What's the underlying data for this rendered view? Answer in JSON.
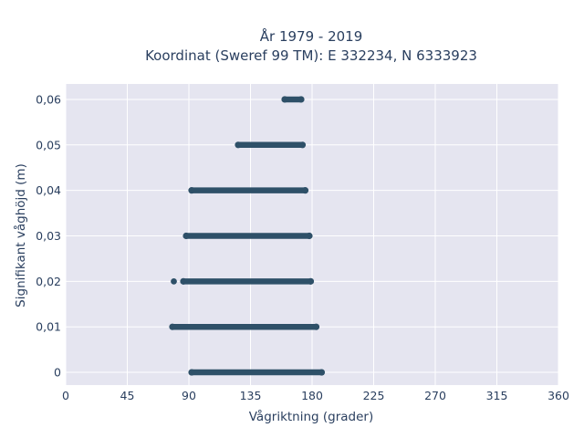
{
  "chart_data": {
    "type": "scatter",
    "title_line1": "År 1979 - 2019",
    "title_line2": "Koordinat (Sweref 99 TM): E 332234, N 6333923",
    "xlabel": "Vågriktning (grader)",
    "ylabel": "Signifikant våghöjd (m)",
    "xlim": [
      0,
      360
    ],
    "ylim": [
      -0.0028,
      0.0634
    ],
    "xticks": [
      0,
      45,
      90,
      135,
      180,
      225,
      270,
      315,
      360
    ],
    "xtick_labels": [
      "0",
      "45",
      "90",
      "135",
      "180",
      "225",
      "270",
      "315",
      "360"
    ],
    "yticks": [
      0,
      0.01,
      0.02,
      0.03,
      0.04,
      0.05,
      0.06
    ],
    "ytick_labels": [
      "0",
      "0,01",
      "0,02",
      "0,03",
      "0,04",
      "0,05",
      "0,06"
    ],
    "grid": true,
    "marker_color": "#2e5068",
    "plot_background": "#e5e5f0",
    "bands": [
      {
        "y": 0.06,
        "x_min": 160,
        "x_max": 172
      },
      {
        "y": 0.05,
        "x_min": 126,
        "x_max": 173
      },
      {
        "y": 0.04,
        "x_min": 92,
        "x_max": 175
      },
      {
        "y": 0.03,
        "x_min": 88,
        "x_max": 178
      },
      {
        "y": 0.02,
        "x_min": 86,
        "x_max": 179
      },
      {
        "y": 0.01,
        "x_min": 78,
        "x_max": 183
      },
      {
        "y": 0,
        "x_min": 92,
        "x_max": 187
      }
    ],
    "outliers": [
      {
        "x": 79,
        "y": 0.02
      }
    ]
  }
}
